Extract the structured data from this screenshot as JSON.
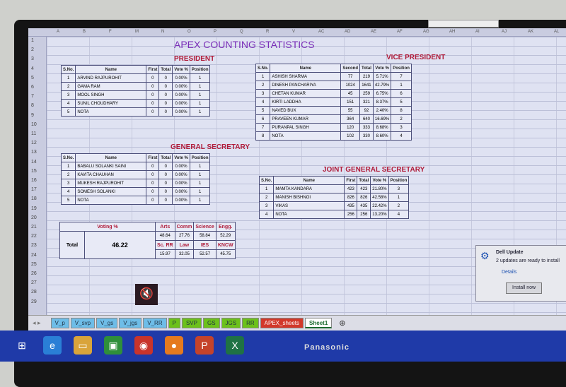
{
  "columns": [
    "A",
    "B",
    "F",
    "M",
    "N",
    "O",
    "P",
    "Q",
    "R",
    "V",
    "AC",
    "AD",
    "AE",
    "AF",
    "AG",
    "AH",
    "AI",
    "AJ",
    "AK",
    "AL"
  ],
  "title": "APEX COUNTING STATISTICS",
  "president": {
    "heading": "PRESIDENT",
    "headers": [
      "S.No.",
      "Name",
      "First",
      "Total",
      "Vote %",
      "Position"
    ],
    "rows": [
      [
        "1",
        "ARVIND RAJPUROHIT",
        "0",
        "0",
        "0.00%",
        "1"
      ],
      [
        "2",
        "GAMA RAM",
        "0",
        "0",
        "0.00%",
        "1"
      ],
      [
        "3",
        "MOOL SINGH",
        "0",
        "0",
        "0.00%",
        "1"
      ],
      [
        "4",
        "SUNIL CHOUDHARY",
        "0",
        "0",
        "0.00%",
        "1"
      ],
      [
        "5",
        "NOTA",
        "0",
        "0",
        "0.00%",
        "1"
      ]
    ]
  },
  "vice_president": {
    "heading": "VICE PRESIDENT",
    "headers": [
      "S.No.",
      "Name",
      "Second",
      "Total",
      "Vote %",
      "Position"
    ],
    "rows": [
      [
        "1",
        "ASHISH SHARMA",
        "77",
        "219",
        "5.71%",
        "7"
      ],
      [
        "2",
        "DINESH PANCHARIYA",
        "1024",
        "1641",
        "42.79%",
        "1"
      ],
      [
        "3",
        "CHETAN KUMAR",
        "45",
        "259",
        "6.75%",
        "6"
      ],
      [
        "4",
        "KIRTI LADDHA",
        "151",
        "321",
        "8.37%",
        "5"
      ],
      [
        "5",
        "NAVED BUX",
        "55",
        "92",
        "2.40%",
        "8"
      ],
      [
        "6",
        "PRAVEEN KUMAR",
        "364",
        "640",
        "16.69%",
        "2"
      ],
      [
        "7",
        "PURANPAL SINGH",
        "120",
        "333",
        "8.68%",
        "3"
      ],
      [
        "8",
        "NOTA",
        "102",
        "330",
        "8.60%",
        "4"
      ]
    ]
  },
  "general_secretary": {
    "heading": "GENERAL SECRETARY",
    "headers": [
      "S.No.",
      "Name",
      "First",
      "Total",
      "Vote %",
      "Position"
    ],
    "rows": [
      [
        "1",
        "BABALU SOLANKI SAINI",
        "0",
        "0",
        "0.00%",
        "1"
      ],
      [
        "2",
        "KAVITA CHAUHAN",
        "0",
        "0",
        "0.00%",
        "1"
      ],
      [
        "3",
        "MUKESH RAJPUROHIT",
        "0",
        "0",
        "0.00%",
        "1"
      ],
      [
        "4",
        "SOMESH SOLANKI",
        "0",
        "0",
        "0.00%",
        "1"
      ],
      [
        "5",
        "NOTA",
        "0",
        "0",
        "0.00%",
        "1"
      ]
    ]
  },
  "joint_general_secretary": {
    "heading": "JOINT GENERAL SECRETARY",
    "headers": [
      "S.No.",
      "Name",
      "First",
      "Total",
      "Vote %",
      "Position"
    ],
    "rows": [
      [
        "1",
        "MAMTA KANDARA",
        "423",
        "423",
        "21.80%",
        "3"
      ],
      [
        "2",
        "MANISH BISHNOI",
        "826",
        "826",
        "42.58%",
        "1"
      ],
      [
        "3",
        "VIKAS",
        "435",
        "435",
        "22.42%",
        "2"
      ],
      [
        "4",
        "NOTA",
        "256",
        "256",
        "13.20%",
        "4"
      ]
    ]
  },
  "voting": {
    "heading": "Voting %",
    "total_label": "Total",
    "total": "46.22",
    "row1_labels": [
      "Arts",
      "Comm",
      "Science",
      "Engg."
    ],
    "row1_values": [
      "48.64",
      "27.76",
      "58.84",
      "52.29"
    ],
    "row2_labels": [
      "Sc. RR",
      "Law",
      "IES",
      "KNCW"
    ],
    "row2_values": [
      "15.97",
      "32.05",
      "52.57",
      "45.75"
    ]
  },
  "sheet_tabs": [
    {
      "label": "V_p",
      "color": "blue"
    },
    {
      "label": "V_svp",
      "color": "blue"
    },
    {
      "label": "V_gs",
      "color": "blue"
    },
    {
      "label": "V_jgs",
      "color": "blue"
    },
    {
      "label": "V_RR",
      "color": "blue"
    },
    {
      "label": "P",
      "color": "green"
    },
    {
      "label": "SVP",
      "color": "green"
    },
    {
      "label": "GS",
      "color": "green"
    },
    {
      "label": "JGS",
      "color": "green"
    },
    {
      "label": "RR",
      "color": "green"
    },
    {
      "label": "APEX_sheets",
      "color": "red"
    },
    {
      "label": "Sheet1",
      "color": "active"
    }
  ],
  "toast": {
    "title": "Dell Update",
    "message": "2 updates are ready to install",
    "link": "Details",
    "button": "Install now"
  },
  "taskbar": {
    "icons": [
      "windows-start",
      "internet-explorer",
      "file-explorer",
      "store",
      "chrome",
      "firefox",
      "powerpoint",
      "excel"
    ]
  },
  "monitor_brand": "Panasonic",
  "colors": {
    "title": "#7a2fb8",
    "section": "#b01c3a",
    "taskbar": "#1f3aa8"
  }
}
